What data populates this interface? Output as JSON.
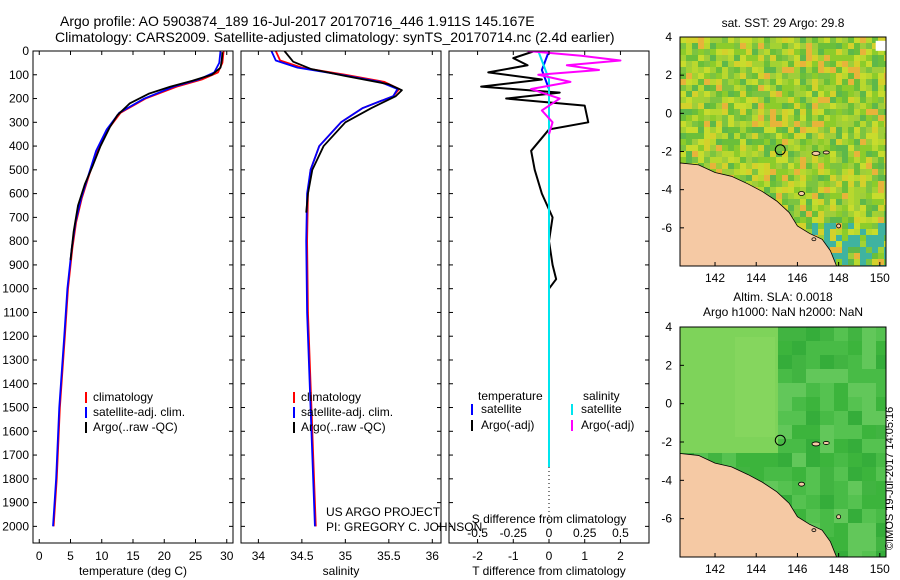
{
  "header": {
    "line1": "Argo profile: AO 5903874_189 16-Jul-2017 20170716_446 1.911S 145.167E",
    "line2": "Climatology: CARS2009. Satellite-adjusted climatology: synTS_20170714.nc (2.4d earlier)"
  },
  "footer": {
    "project": "US ARGO PROJECT",
    "pi": "PI: GREGORY C. JOHNSON",
    "stamp": "©IMOS 19-Jul-2017 14:05:16"
  },
  "colors": {
    "climatology": "#ff0000",
    "satellite": "#0000ff",
    "argo": "#000000",
    "salinity_satellite": "#00e5ee",
    "salinity_argo": "#ff00ff",
    "land": "#f5c9a4",
    "sst_ocean": "#8ac926",
    "sla_ocean": "#3cb43c"
  },
  "chart_data": [
    {
      "type": "line",
      "name": "temperature-profile",
      "xlabel": "temperature (deg C)",
      "ylabel": "",
      "xlim": [
        -1,
        31
      ],
      "ylim": [
        2070,
        0
      ],
      "xticks": [
        0,
        5,
        10,
        15,
        20,
        25,
        30
      ],
      "yticks": [
        0,
        100,
        200,
        300,
        400,
        500,
        600,
        700,
        800,
        900,
        1000,
        1100,
        1200,
        1300,
        1400,
        1500,
        1600,
        1700,
        1800,
        1900,
        2000
      ],
      "legend": [
        "climatology",
        "satellite-adj. clim.",
        "Argo(..raw -QC)"
      ],
      "legend_position": "lower-middle",
      "series": [
        {
          "name": "climatology",
          "x": [
            29.5,
            29.3,
            28.6,
            26.0,
            22.0,
            17.0,
            13.0,
            11.0,
            9.3,
            8.0,
            6.8,
            5.9,
            5.3,
            4.6,
            4.1,
            3.3,
            2.8,
            2.3
          ],
          "y": [
            0,
            50,
            90,
            120,
            150,
            200,
            260,
            330,
            420,
            520,
            620,
            720,
            830,
            1000,
            1200,
            1500,
            1800,
            2000
          ]
        },
        {
          "name": "satellite-adj. clim.",
          "x": [
            29.0,
            28.8,
            28.0,
            25.5,
            21.5,
            16.8,
            12.8,
            10.8,
            9.1,
            7.9,
            6.7,
            5.8,
            5.2,
            4.5,
            4.0,
            3.2,
            2.7,
            2.2
          ],
          "y": [
            0,
            50,
            90,
            120,
            150,
            200,
            260,
            330,
            420,
            520,
            620,
            720,
            830,
            1000,
            1200,
            1500,
            1800,
            2000
          ]
        },
        {
          "name": "Argo(..raw -QC)",
          "x": [
            29.3,
            29.2,
            29.0,
            27.6,
            24.5,
            21.0,
            17.5,
            14.5,
            12.5,
            11.3,
            9.8,
            8.6,
            7.3,
            6.2,
            5.5,
            5.0
          ],
          "y": [
            5,
            40,
            70,
            100,
            125,
            150,
            180,
            220,
            270,
            320,
            400,
            480,
            560,
            650,
            760,
            880
          ]
        }
      ]
    },
    {
      "type": "line",
      "name": "salinity-profile",
      "xlabel": "salinity",
      "ylabel": "",
      "xlim": [
        33.8,
        36.1
      ],
      "ylim": [
        2070,
        0
      ],
      "xticks": [
        34,
        34.5,
        35,
        35.5,
        36
      ],
      "legend": [
        "climatology",
        "satellite-adj. clim.",
        "Argo(..raw -QC)"
      ],
      "legend_position": "lower-middle",
      "series": [
        {
          "name": "climatology",
          "x": [
            34.2,
            34.25,
            34.5,
            35.0,
            35.45,
            35.62,
            35.55,
            35.2,
            34.95,
            34.7,
            34.6,
            34.57,
            34.56,
            34.57,
            34.6,
            34.63,
            34.66
          ],
          "y": [
            0,
            40,
            70,
            100,
            130,
            160,
            190,
            240,
            300,
            400,
            500,
            600,
            800,
            1100,
            1400,
            1700,
            2000
          ]
        },
        {
          "name": "satellite-adj. clim.",
          "x": [
            34.15,
            34.2,
            34.45,
            34.95,
            35.4,
            35.6,
            35.55,
            35.2,
            34.95,
            34.7,
            34.6,
            34.56,
            34.55,
            34.56,
            34.59,
            34.62,
            34.65
          ],
          "y": [
            0,
            40,
            70,
            100,
            130,
            160,
            190,
            240,
            300,
            400,
            500,
            600,
            800,
            1100,
            1400,
            1700,
            2000
          ]
        },
        {
          "name": "Argo(..raw -QC)",
          "x": [
            34.3,
            34.4,
            34.6,
            35.0,
            35.5,
            35.65,
            35.58,
            35.3,
            35.0,
            34.75,
            34.62,
            34.57,
            34.55
          ],
          "y": [
            0,
            45,
            75,
            105,
            140,
            165,
            190,
            240,
            300,
            400,
            500,
            600,
            680
          ]
        }
      ]
    },
    {
      "type": "line",
      "name": "difference-profile",
      "xlabel": "T difference from climatology",
      "xlabel_top": "S difference from climatology",
      "ylabel": "",
      "xlim": [
        -2.8,
        2.8
      ],
      "ylim": [
        2070,
        0
      ],
      "xticks": [
        -2,
        -1,
        0,
        1,
        2
      ],
      "xticks_top": [
        "-0.5",
        "-0.25",
        "0",
        "0.25",
        "0.5"
      ],
      "legend_temperature_title": "temperature",
      "legend_salinity_title": "salinity",
      "legend": [
        "satellite",
        "Argo(-adj)",
        "satellite",
        "Argo(-adj)"
      ],
      "legend_position": "lower-middle",
      "series": [
        {
          "name": "satellite",
          "x": [
            0.0,
            -0.1,
            -0.2,
            -0.1,
            0.0,
            0.0,
            0.0,
            0.0,
            0.0,
            0.0
          ],
          "y": [
            0,
            40,
            80,
            120,
            160,
            300,
            600,
            1000,
            1400,
            1750
          ]
        },
        {
          "name": "Argo(-adj)",
          "x": [
            -0.4,
            -1.0,
            -0.6,
            -1.7,
            -0.2,
            -1.9,
            0.3,
            -1.2,
            1.0,
            1.1,
            0.0,
            -0.5,
            -0.4,
            -0.2,
            0.1,
            0.0,
            0.1,
            0.2,
            0.0
          ],
          "y": [
            0,
            30,
            60,
            90,
            120,
            150,
            175,
            200,
            230,
            300,
            330,
            420,
            500,
            600,
            700,
            800,
            900,
            960,
            1000
          ]
        },
        {
          "name": "satellite",
          "x": [
            -0.3,
            -0.2,
            -0.1,
            0.0,
            0.0,
            0.0,
            0.0,
            0.0,
            0.0,
            0.0
          ],
          "y": [
            0,
            40,
            80,
            120,
            200,
            400,
            800,
            1200,
            1600,
            1750
          ]
        },
        {
          "name": "Argo(-adj)",
          "x": [
            -0.6,
            0.9,
            2.0,
            0.5,
            1.4,
            -0.3,
            0.6,
            -0.5,
            0.3,
            -0.2,
            0.1,
            0.0
          ],
          "y": [
            0,
            20,
            40,
            60,
            80,
            100,
            130,
            160,
            200,
            250,
            300,
            350
          ]
        }
      ]
    },
    {
      "type": "heatmap",
      "name": "sst-map",
      "title": "sat. SST: 29 Argo: 29.8",
      "xlim": [
        140.3,
        150.3
      ],
      "ylim": [
        -8,
        4
      ],
      "xticks": [
        142,
        144,
        146,
        148,
        150
      ],
      "yticks": [
        -6,
        -4,
        -2,
        0,
        2,
        4
      ],
      "float_position": {
        "lon": 145.167,
        "lat": -1.911
      }
    },
    {
      "type": "heatmap",
      "name": "sla-map",
      "title": "Altim. SLA: 0.0018",
      "subtitle": "Argo h1000: NaN h2000: NaN",
      "xlim": [
        140.3,
        150.3
      ],
      "ylim": [
        -8,
        4
      ],
      "xticks": [
        142,
        144,
        146,
        148,
        150
      ],
      "yticks": [
        -6,
        -4,
        -2,
        0,
        2,
        4
      ],
      "float_position": {
        "lon": 145.167,
        "lat": -1.911
      }
    }
  ]
}
